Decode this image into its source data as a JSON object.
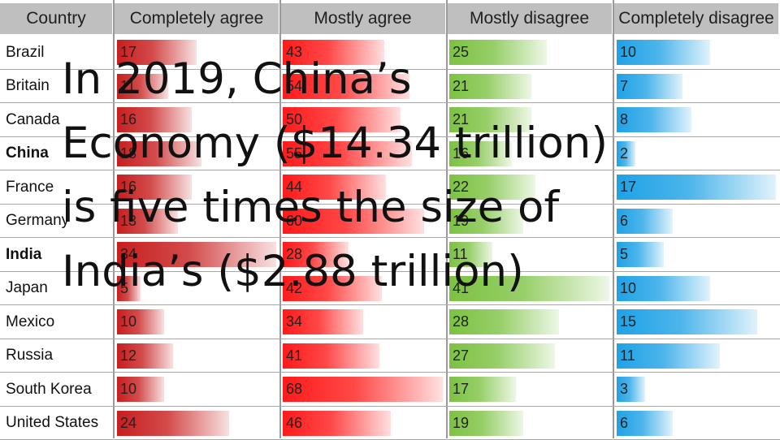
{
  "overlay_text": "In 2019, China’s\nEconomy ($14.34 trillion)\nis five times the size of\nIndia’s ($2.88 trillion)",
  "colors": {
    "Completely agree": "#c81e1e",
    "Mostly agree": "#ff1a1a",
    "Mostly disagree": "#7cc242",
    "Completely disagree": "#1fa2e6",
    "header_bg": "#bfbfbf"
  },
  "chart_data": {
    "type": "table",
    "columns": [
      "Country",
      "Completely agree",
      "Mostly agree",
      "Mostly disagree",
      "Completely disagree"
    ],
    "rows": [
      {
        "country": "Brazil",
        "values": [
          17,
          43,
          25,
          10
        ]
      },
      {
        "country": "Britain",
        "values": [
          11,
          54,
          21,
          7
        ]
      },
      {
        "country": "Canada",
        "values": [
          16,
          50,
          21,
          8
        ]
      },
      {
        "country": "China",
        "values": [
          18,
          55,
          16,
          2
        ]
      },
      {
        "country": "France",
        "values": [
          16,
          44,
          22,
          17
        ]
      },
      {
        "country": "Germany",
        "values": [
          13,
          60,
          19,
          6
        ]
      },
      {
        "country": "India",
        "values": [
          34,
          28,
          11,
          5
        ]
      },
      {
        "country": "Japan",
        "values": [
          5,
          42,
          41,
          10
        ]
      },
      {
        "country": "Mexico",
        "values": [
          10,
          34,
          28,
          15
        ]
      },
      {
        "country": "Russia",
        "values": [
          12,
          41,
          27,
          11
        ]
      },
      {
        "country": "South Korea",
        "values": [
          10,
          68,
          17,
          3
        ]
      },
      {
        "country": "United States",
        "values": [
          24,
          46,
          19,
          6
        ]
      }
    ],
    "bar_max": [
      34,
      68,
      41,
      17
    ]
  }
}
